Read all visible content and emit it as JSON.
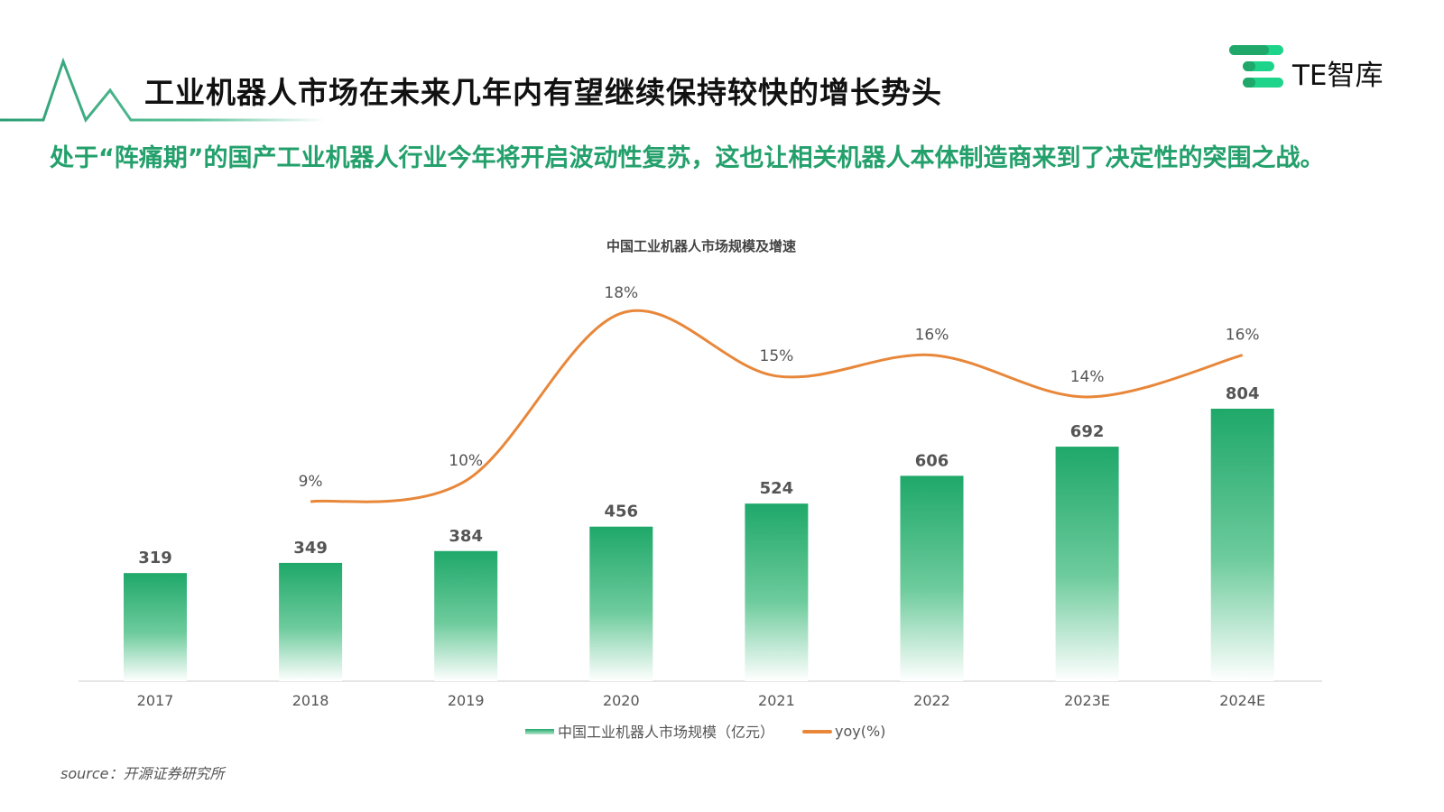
{
  "header": {
    "title": "工业机器人市场在未来几年内有望继续保持较快的增长势头",
    "subtitle": "处于“阵痛期”的国产工业机器人行业今年将开启波动性复苏，这也让相关机器人本体制造商来到了决定性的突围之战。",
    "brand": "TE智库",
    "accent": "#23a06b"
  },
  "source": "source：开源证券研究所",
  "chart_data": {
    "type": "bar",
    "title": "中国工业机器人市场规模及增速",
    "categories": [
      "2017",
      "2018",
      "2019",
      "2020",
      "2021",
      "2022",
      "2023E",
      "2024E"
    ],
    "series": [
      {
        "name": "中国工业机器人市场规模（亿元）",
        "type": "bar",
        "color": "#1fa86a",
        "values": [
          319,
          349,
          384,
          456,
          524,
          606,
          692,
          804
        ],
        "labels": [
          "319",
          "349",
          "384",
          "456",
          "524",
          "606",
          "692",
          "804"
        ]
      },
      {
        "name": "yoy(%)",
        "type": "line",
        "color": "#e8873a",
        "values": [
          null,
          9,
          10,
          18,
          15,
          16,
          14,
          16
        ],
        "labels": [
          "",
          "9%",
          "10%",
          "18%",
          "15%",
          "16%",
          "14%",
          "16%"
        ]
      }
    ],
    "legend": "bottom",
    "grid": false
  }
}
